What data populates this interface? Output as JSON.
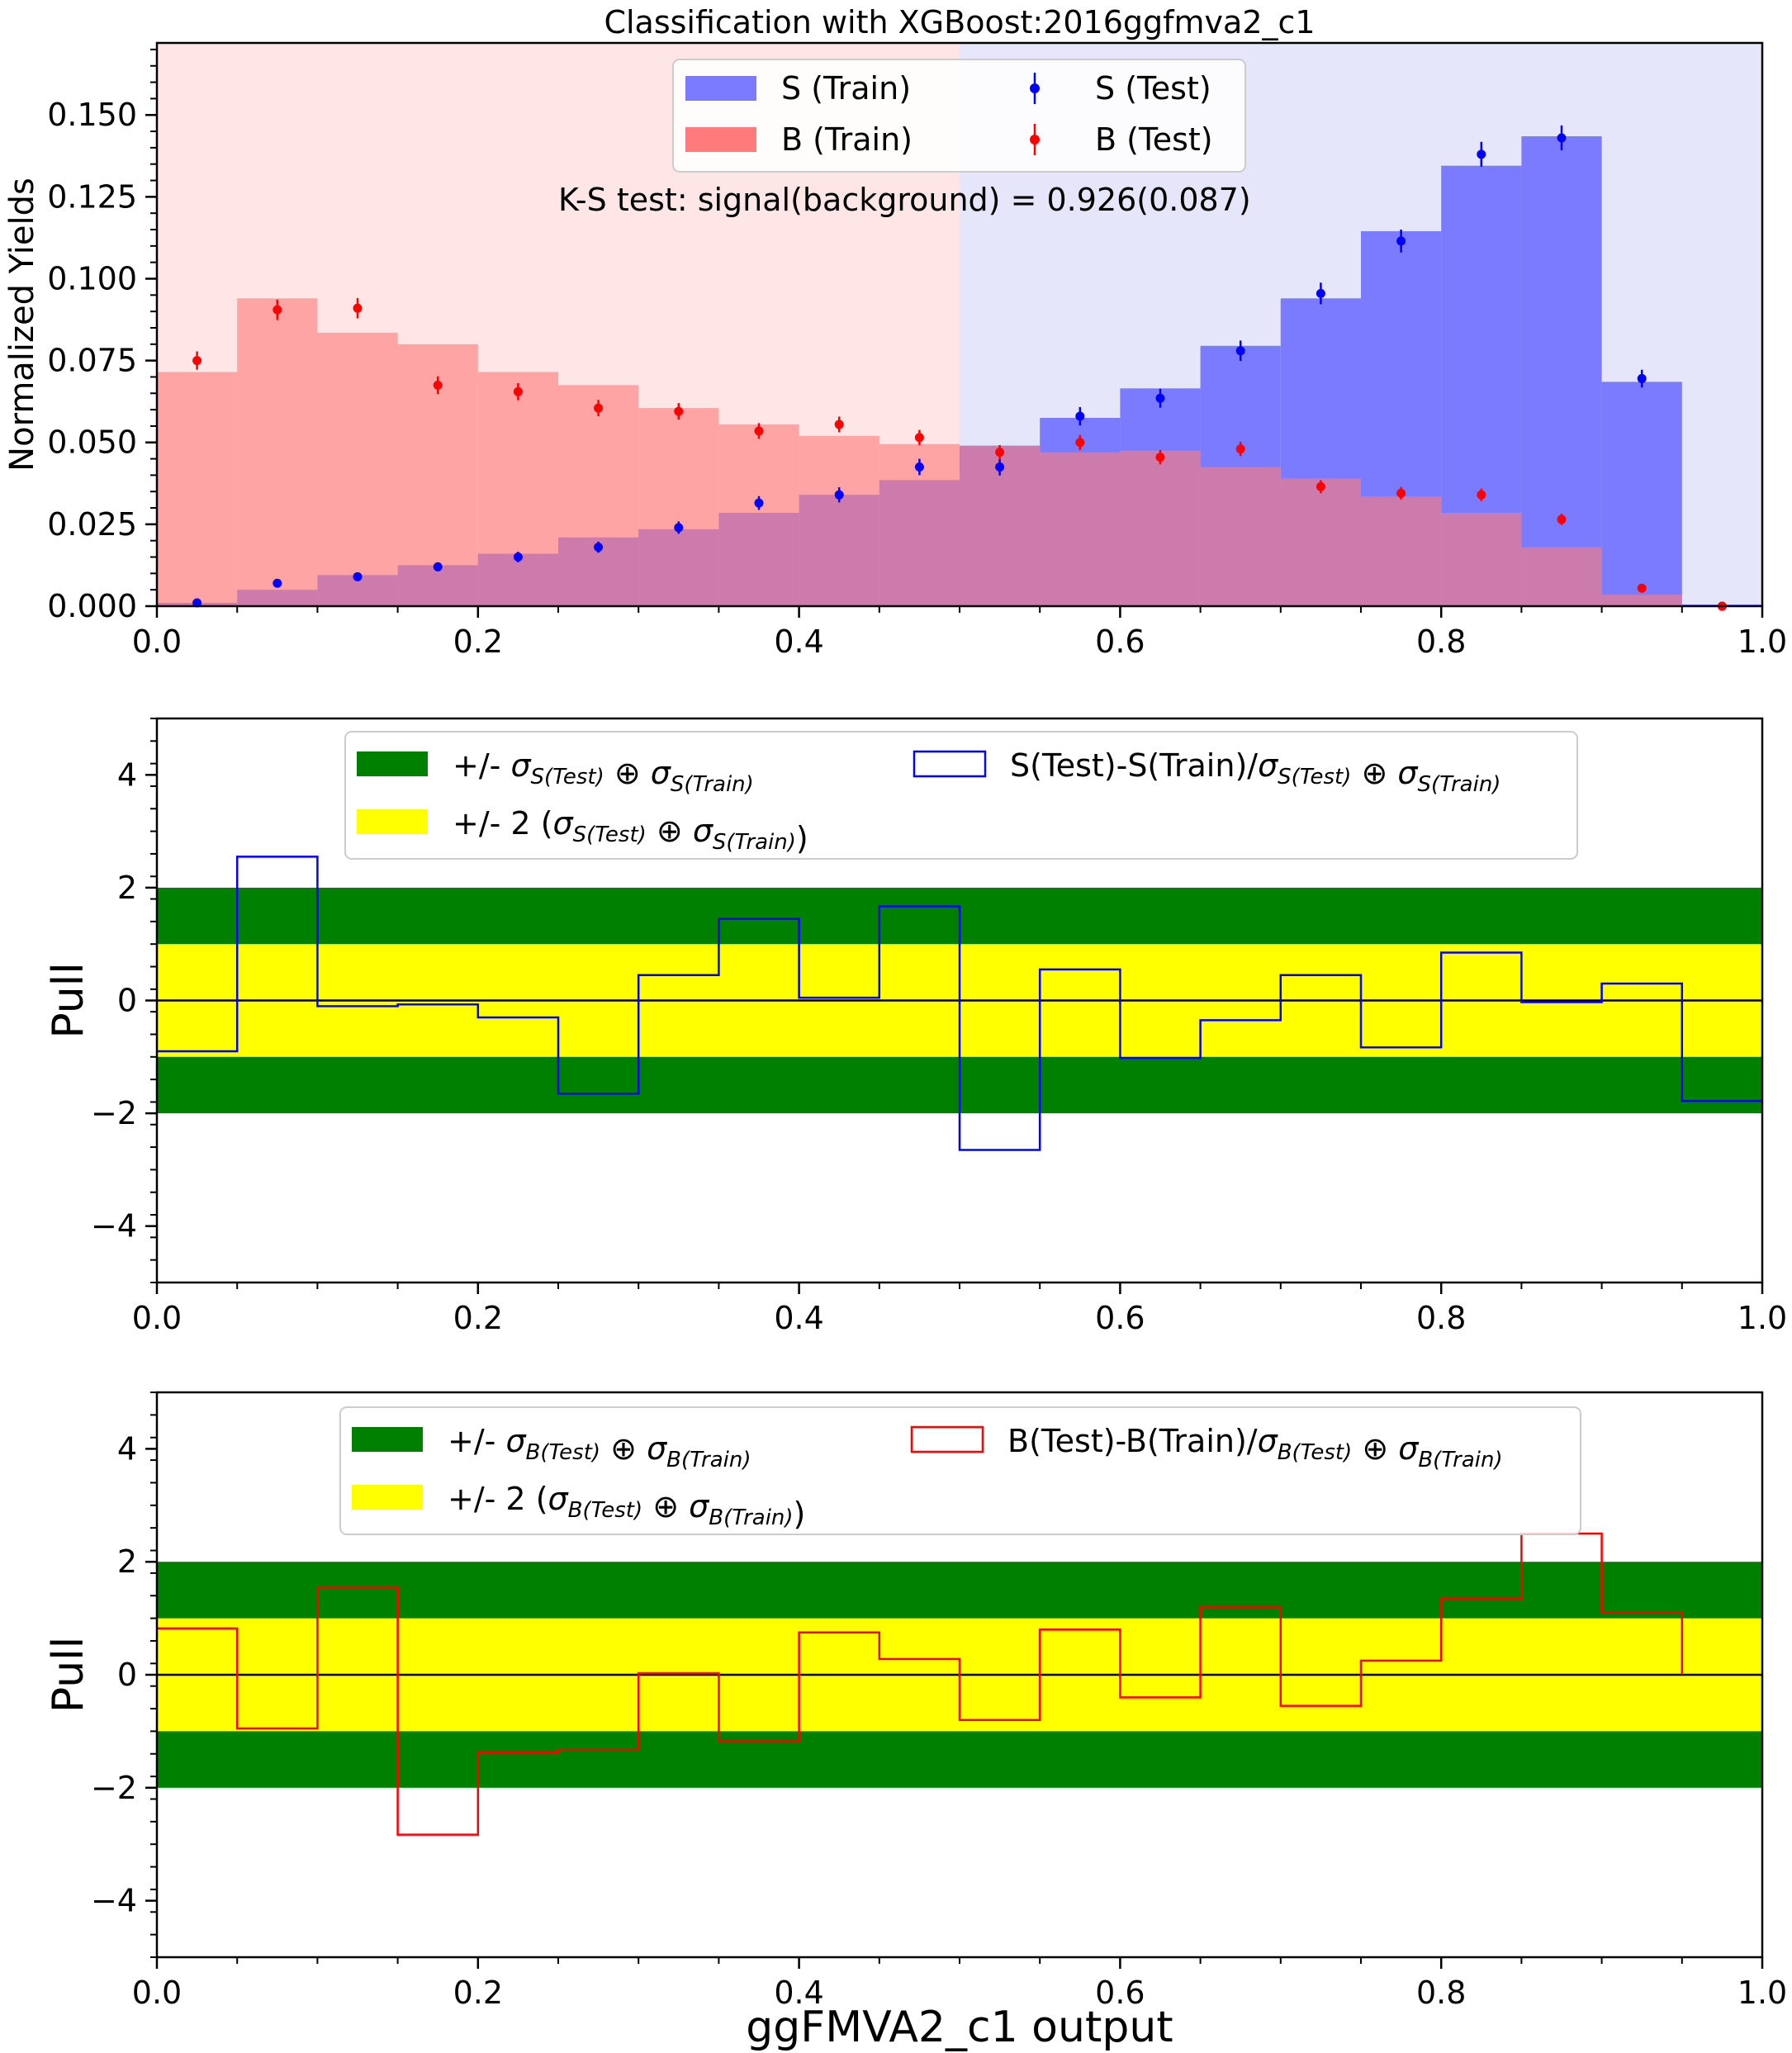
{
  "chart_data": [
    {
      "type": "bar",
      "title": "Classification with XGBoost:2016ggfmva2_c1",
      "xlabel": "",
      "ylabel": "Normalized Yields",
      "xlim": [
        0.0,
        1.0
      ],
      "ylim": [
        0.0,
        0.172
      ],
      "xticks": [
        "0.0",
        "0.2",
        "0.4",
        "0.6",
        "0.8",
        "1.0"
      ],
      "yticks": [
        "0.000",
        "0.025",
        "0.050",
        "0.075",
        "0.100",
        "0.125",
        "0.150"
      ],
      "ytick_values": [
        0.0,
        0.025,
        0.05,
        0.075,
        0.1,
        0.125,
        0.15
      ],
      "background_regions": [
        {
          "x": [
            0.0,
            0.5
          ],
          "color": "#ffe6e6"
        },
        {
          "x": [
            0.5,
            1.0
          ],
          "color": "#e6e6fa"
        }
      ],
      "bin_edges": [
        0.0,
        0.05,
        0.1,
        0.15,
        0.2,
        0.25,
        0.3,
        0.35,
        0.4,
        0.45,
        0.5,
        0.55,
        0.6,
        0.65,
        0.7,
        0.75,
        0.8,
        0.85,
        0.9,
        0.95,
        1.0
      ],
      "bin_centers": [
        0.025,
        0.075,
        0.125,
        0.175,
        0.225,
        0.275,
        0.325,
        0.375,
        0.425,
        0.475,
        0.525,
        0.575,
        0.625,
        0.675,
        0.725,
        0.775,
        0.825,
        0.875,
        0.925,
        0.975
      ],
      "series": [
        {
          "name": "S (Train)",
          "kind": "filled-histogram",
          "color": "#7b7bff",
          "values": [
            0.001,
            0.005,
            0.0095,
            0.0125,
            0.016,
            0.021,
            0.0235,
            0.0285,
            0.034,
            0.0385,
            0.049,
            0.0575,
            0.0665,
            0.0795,
            0.094,
            0.1145,
            0.1345,
            0.1435,
            0.0685,
            0.0005
          ]
        },
        {
          "name": "B (Train)",
          "kind": "filled-histogram",
          "color": "#ff7b7b",
          "values": [
            0.0715,
            0.094,
            0.0835,
            0.08,
            0.0715,
            0.0675,
            0.0605,
            0.0555,
            0.052,
            0.0495,
            0.049,
            0.047,
            0.0475,
            0.0425,
            0.039,
            0.0335,
            0.0285,
            0.018,
            0.0035,
            0.0
          ]
        },
        {
          "name": "S (Test)",
          "kind": "points",
          "color": "#0000ff",
          "values": [
            0.001,
            0.007,
            0.009,
            0.012,
            0.015,
            0.018,
            0.024,
            0.0315,
            0.034,
            0.0425,
            0.0425,
            0.058,
            0.0635,
            0.078,
            0.0955,
            0.1115,
            0.138,
            0.143,
            0.0695,
            0.0
          ],
          "errors": [
            0.0005,
            0.001,
            0.0012,
            0.0014,
            0.0016,
            0.0017,
            0.0019,
            0.0021,
            0.0023,
            0.0025,
            0.0026,
            0.0028,
            0.0029,
            0.0031,
            0.0033,
            0.0035,
            0.0038,
            0.0038,
            0.0027,
            0.0001
          ]
        },
        {
          "name": "B (Test)",
          "kind": "points",
          "color": "#ff0000",
          "values": [
            0.075,
            0.0905,
            0.091,
            0.0675,
            0.0655,
            0.0605,
            0.0595,
            0.0535,
            0.0555,
            0.0515,
            0.047,
            0.05,
            0.0455,
            0.048,
            0.0365,
            0.0345,
            0.034,
            0.0265,
            0.0055,
            0.0
          ],
          "errors": [
            0.0028,
            0.0031,
            0.0031,
            0.0027,
            0.0026,
            0.0025,
            0.0025,
            0.0024,
            0.0024,
            0.0023,
            0.0022,
            0.0023,
            0.0022,
            0.0022,
            0.002,
            0.0019,
            0.0019,
            0.0017,
            0.0008,
            0.0001
          ]
        }
      ],
      "legend": {
        "placement": "upper-center",
        "entries": [
          "S (Train)",
          "S (Test)",
          "B (Train)",
          "B (Test)"
        ]
      },
      "annotation": "K-S test: signal(background) = 0.926(0.087)",
      "grid": false
    },
    {
      "type": "line",
      "xlabel": "",
      "ylabel": "Pull",
      "xlim": [
        0.0,
        1.0
      ],
      "ylim": [
        -5,
        5
      ],
      "xticks": [
        "0.0",
        "0.2",
        "0.4",
        "0.6",
        "0.8",
        "1.0"
      ],
      "yticks": [
        "−4",
        "−2",
        "0",
        "2",
        "4"
      ],
      "ytick_values": [
        -4,
        -2,
        0,
        2,
        4
      ],
      "bands": [
        {
          "range": [
            -2,
            2
          ],
          "color": "#008000"
        },
        {
          "range": [
            -1,
            1
          ],
          "color": "#ffff00"
        }
      ],
      "bin_edges": [
        0.0,
        0.05,
        0.1,
        0.15,
        0.2,
        0.25,
        0.3,
        0.35,
        0.4,
        0.45,
        0.5,
        0.55,
        0.6,
        0.65,
        0.7,
        0.75,
        0.8,
        0.85,
        0.9,
        0.95,
        1.0
      ],
      "series": [
        {
          "kind": "step",
          "color": "#0000ff",
          "values": [
            -0.9,
            2.55,
            -0.1,
            -0.07,
            -0.3,
            -1.65,
            0.45,
            1.45,
            0.05,
            1.67,
            -2.65,
            0.55,
            -1.02,
            -0.35,
            0.45,
            -0.83,
            0.85,
            -0.03,
            0.3,
            -1.78
          ]
        }
      ],
      "legend": {
        "placement": "upper-center",
        "entries": [
          {
            "prefix": "+/- ",
            "pieces": [
              {
                "sym": "σ",
                "sub": "S(Test)"
              },
              {
                "sep": " ⊕ "
              },
              {
                "sym": "σ",
                "sub": "S(Train)"
              }
            ]
          },
          {
            "prefix": "S(Test)-S(Train)/",
            "pieces": [
              {
                "sym": "σ",
                "sub": "S(Test)"
              },
              {
                "sep": " ⊕ "
              },
              {
                "sym": "σ",
                "sub": "S(Train)"
              }
            ]
          },
          {
            "prefix": "+/- 2 (",
            "suffix": ")",
            "pieces": [
              {
                "sym": "σ",
                "sub": "S(Test)"
              },
              {
                "sep": " ⊕ "
              },
              {
                "sym": "σ",
                "sub": "S(Train)"
              }
            ]
          }
        ]
      },
      "grid": false
    },
    {
      "type": "line",
      "xlabel": "ggFMVA2_c1 output",
      "ylabel": "Pull",
      "xlim": [
        0.0,
        1.0
      ],
      "ylim": [
        -5,
        5
      ],
      "xticks": [
        "0.0",
        "0.2",
        "0.4",
        "0.6",
        "0.8",
        "1.0"
      ],
      "yticks": [
        "−4",
        "−2",
        "0",
        "2",
        "4"
      ],
      "ytick_values": [
        -4,
        -2,
        0,
        2,
        4
      ],
      "bands": [
        {
          "range": [
            -2,
            2
          ],
          "color": "#008000"
        },
        {
          "range": [
            -1,
            1
          ],
          "color": "#ffff00"
        }
      ],
      "bin_edges": [
        0.0,
        0.05,
        0.1,
        0.15,
        0.2,
        0.25,
        0.3,
        0.35,
        0.4,
        0.45,
        0.5,
        0.55,
        0.6,
        0.65,
        0.7,
        0.75,
        0.8,
        0.85,
        0.9,
        0.95
      ],
      "series": [
        {
          "kind": "step",
          "color": "#ff0000",
          "values": [
            0.82,
            -0.95,
            1.55,
            -2.83,
            -1.37,
            -1.32,
            0.03,
            -1.17,
            0.75,
            0.28,
            -0.8,
            0.8,
            -0.4,
            1.2,
            -0.55,
            0.25,
            1.35,
            2.5,
            1.1
          ]
        }
      ],
      "legend": {
        "placement": "upper-center",
        "entries": [
          {
            "prefix": "+/- ",
            "pieces": [
              {
                "sym": "σ",
                "sub": "B(Test)"
              },
              {
                "sep": " ⊕ "
              },
              {
                "sym": "σ",
                "sub": "B(Train)"
              }
            ]
          },
          {
            "prefix": "B(Test)-B(Train)/",
            "pieces": [
              {
                "sym": "σ",
                "sub": "B(Test)"
              },
              {
                "sep": " ⊕ "
              },
              {
                "sym": "σ",
                "sub": "B(Train)"
              }
            ]
          },
          {
            "prefix": "+/- 2 (",
            "suffix": ")",
            "pieces": [
              {
                "sym": "σ",
                "sub": "B(Test)"
              },
              {
                "sep": " ⊕ "
              },
              {
                "sym": "σ",
                "sub": "B(Train)"
              }
            ]
          }
        ]
      },
      "grid": false
    }
  ]
}
